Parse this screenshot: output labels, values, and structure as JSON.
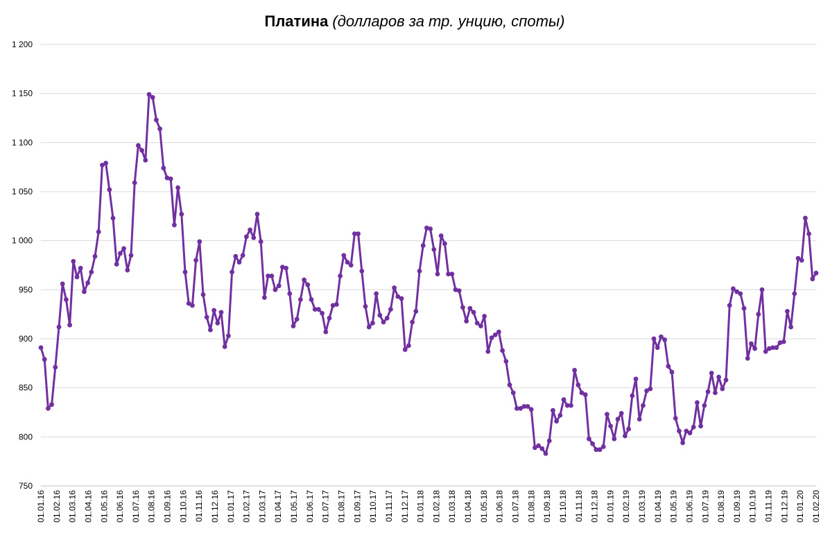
{
  "chart_data": {
    "type": "line",
    "title": "Платина",
    "subtitle": "(долларов за тр. унцию, споты)",
    "ylim": [
      750,
      1200
    ],
    "yticks": [
      750,
      800,
      850,
      900,
      950,
      1000,
      1050,
      1100,
      1150,
      1200
    ],
    "ytick_labels": [
      "750",
      "800",
      "850",
      "900",
      "950",
      "1 000",
      "1 050",
      "1 100",
      "1 150",
      "1 200"
    ],
    "grid": true,
    "x_range": [
      "01.01.16",
      "01.02.20"
    ],
    "x_tick_labels": [
      "01.01.16",
      "01.02.16",
      "01.03.16",
      "01.04.16",
      "01.05.16",
      "01.06.16",
      "01.07.16",
      "01.08.16",
      "01.09.16",
      "01.10.16",
      "01.11.16",
      "01.12.16",
      "01.01.17",
      "01.02.17",
      "01.03.17",
      "01.04.17",
      "01.05.17",
      "01.06.17",
      "01.07.17",
      "01.08.17",
      "01.09.17",
      "01.10.17",
      "01.11.17",
      "01.12.17",
      "01.01.18",
      "01.02.18",
      "01.03.18",
      "01.04.18",
      "01.05.18",
      "01.06.18",
      "01.07.18",
      "01.08.18",
      "01.09.18",
      "01.10.18",
      "01.11.18",
      "01.12.18",
      "01.01.19",
      "01.02.19",
      "01.03.19",
      "01.04.19",
      "01.05.19",
      "01.06.19",
      "01.07.19",
      "01.08.19",
      "01.09.19",
      "01.10.19",
      "01.11.19",
      "01.12.19",
      "01.01.20",
      "01.02.20"
    ],
    "series": [
      {
        "color": "#7030a0",
        "values": [
          891,
          879,
          829,
          833,
          871,
          912,
          956,
          940,
          914,
          979,
          963,
          972,
          948,
          957,
          968,
          984,
          1009,
          1077,
          1079,
          1052,
          1023,
          976,
          987,
          992,
          970,
          985,
          1059,
          1097,
          1092,
          1082,
          1149,
          1146,
          1123,
          1114,
          1074,
          1064,
          1063,
          1016,
          1054,
          1027,
          968,
          936,
          934,
          980,
          999,
          945,
          922,
          909,
          929,
          916,
          927,
          892,
          903,
          968,
          984,
          978,
          985,
          1004,
          1011,
          1003,
          1027,
          999,
          942,
          964,
          964,
          950,
          954,
          973,
          972,
          946,
          913,
          920,
          940,
          960,
          955,
          940,
          930,
          930,
          926,
          907,
          921,
          934,
          935,
          964,
          985,
          978,
          975,
          1007,
          1007,
          969,
          933,
          912,
          916,
          946,
          924,
          917,
          921,
          930,
          952,
          943,
          941,
          889,
          893,
          917,
          928,
          969,
          995,
          1013,
          1012,
          991,
          966,
          1005,
          997,
          966,
          966,
          950,
          949,
          932,
          918,
          931,
          927,
          916,
          913,
          923,
          887,
          901,
          904,
          907,
          888,
          877,
          853,
          845,
          829,
          829,
          831,
          831,
          828,
          789,
          791,
          788,
          783,
          796,
          827,
          816,
          822,
          838,
          832,
          832,
          868,
          853,
          845,
          843,
          798,
          793,
          787,
          787,
          790,
          823,
          811,
          798,
          818,
          824,
          801,
          808,
          842,
          859,
          818,
          832,
          847,
          849,
          900,
          891,
          902,
          899,
          872,
          866,
          819,
          806,
          794,
          806,
          804,
          810,
          835,
          811,
          832,
          846,
          865,
          845,
          861,
          849,
          858,
          934,
          951,
          948,
          946,
          931,
          880,
          895,
          890,
          925,
          950,
          887,
          890,
          891,
          891,
          896,
          897,
          928,
          912,
          946,
          982,
          980,
          1023,
          1007,
          961,
          967
        ]
      }
    ]
  }
}
